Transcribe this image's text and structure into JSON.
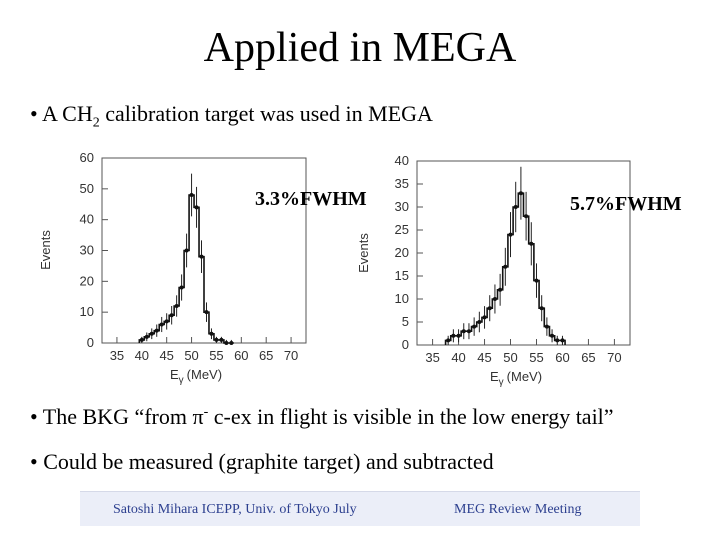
{
  "slide": {
    "title": "Applied in MEGA",
    "bullet1_prefix": "• A CH",
    "bullet1_sub": "2",
    "bullet1_suffix": " calibration target was used in MEGA",
    "bullet2_prefix": "• The BKG “from ",
    "bullet2_symbol": "π",
    "bullet2_sup": "-",
    "bullet2_suffix": " c-ex in flight is visible in the low energy tail”",
    "bullet3": "• Could be measured (graphite target) and subtracted",
    "footer_left": "Satoshi Mihara ICEPP, Univ. of Tokyo July",
    "footer_right": "MEG Review Meeting"
  },
  "chart_data": [
    {
      "type": "histogram",
      "annotation": "3.3%FWHM",
      "ylabel": "Events",
      "xlabel_main": "E",
      "xlabel_sub": "γ",
      "xlabel_unit": "(MeV)",
      "xlim": [
        32,
        73
      ],
      "ylim": [
        0,
        60
      ],
      "xticks": [
        35,
        40,
        45,
        50,
        55,
        60,
        65,
        70
      ],
      "yticks": [
        0,
        10,
        20,
        30,
        40,
        50,
        60
      ],
      "x": [
        40,
        41,
        42,
        43,
        44,
        45,
        46,
        47,
        48,
        49,
        50,
        51,
        52,
        53,
        54,
        55,
        56,
        57,
        58
      ],
      "values": [
        1,
        2,
        3,
        4,
        6,
        7,
        9,
        12,
        18,
        30,
        48,
        44,
        28,
        10,
        3,
        1,
        1,
        0,
        0
      ]
    },
    {
      "type": "histogram",
      "annotation": "5.7%FWHM",
      "ylabel": "Events",
      "xlabel_main": "E",
      "xlabel_sub": "γ",
      "xlabel_unit": "(MeV)",
      "xlim": [
        32,
        73
      ],
      "ylim": [
        0,
        40
      ],
      "xticks": [
        35,
        40,
        45,
        50,
        55,
        60,
        65,
        70
      ],
      "yticks": [
        0,
        5,
        10,
        15,
        20,
        25,
        30,
        35,
        40
      ],
      "x": [
        38,
        39,
        40,
        41,
        42,
        43,
        44,
        45,
        46,
        47,
        48,
        49,
        50,
        51,
        52,
        53,
        54,
        55,
        56,
        57,
        58,
        59,
        60
      ],
      "values": [
        1,
        2,
        2,
        3,
        3,
        4,
        5,
        6,
        8,
        10,
        12,
        17,
        24,
        30,
        33,
        28,
        22,
        14,
        8,
        4,
        2,
        1,
        1
      ]
    }
  ]
}
